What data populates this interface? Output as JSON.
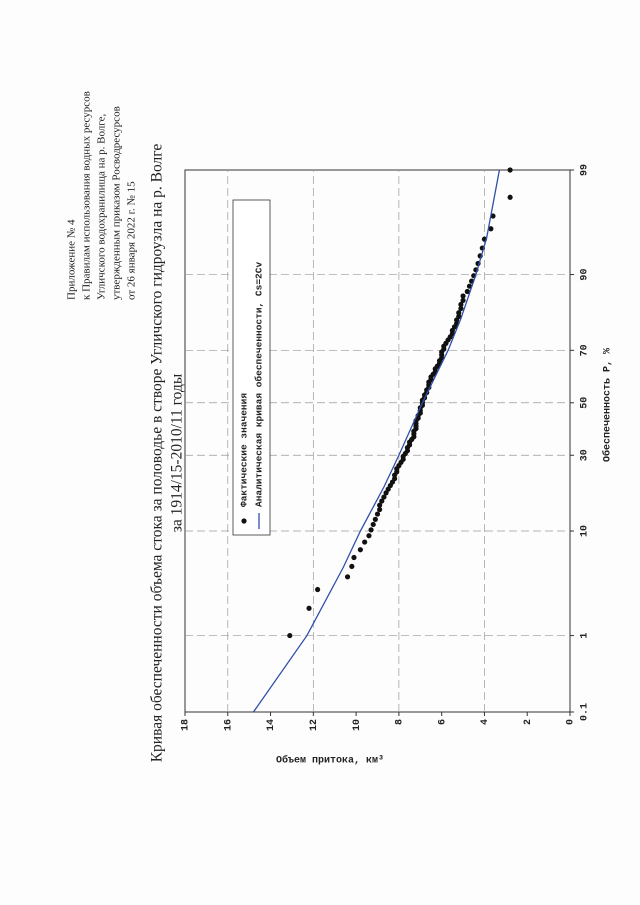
{
  "header": {
    "lines": [
      "Приложение № 4",
      "к Правилам использования водных ресурсов",
      "Угличского водохранилища на р. Волге,",
      "утвержденным приказом Росводресурсов",
      "от 26 января 2022 г. № 15"
    ]
  },
  "chart_data": {
    "type": "scatter",
    "title": [
      "Кривая обеспеченности объема стока за половодье в створе Угличского гидроузла на р. Волге",
      "за 1914/15-2010/11 годы"
    ],
    "x_label": "Обеспеченность P, %",
    "y_label": "Объем притока, км³",
    "x_scale": "normal-probability",
    "xlim": [
      0.1,
      99
    ],
    "xticks": [
      0.1,
      1,
      10,
      30,
      50,
      70,
      90,
      99
    ],
    "ylim": [
      0,
      18
    ],
    "yticks": [
      0,
      2,
      4,
      6,
      8,
      10,
      12,
      14,
      16,
      18
    ],
    "ygridlines": [
      4,
      8,
      12,
      16
    ],
    "series": [
      {
        "name": "Фактические значения",
        "kind": "points",
        "color": "#111111",
        "x": [
          1.0,
          2.0,
          3.1,
          4.1,
          5.1,
          6.1,
          7.1,
          8.2,
          9.2,
          10.2,
          11.2,
          12.2,
          13.3,
          14.3,
          15.3,
          16.3,
          17.3,
          18.4,
          19.4,
          20.4,
          21.4,
          22.4,
          23.5,
          24.5,
          25.5,
          26.5,
          27.6,
          28.6,
          29.6,
          30.6,
          31.6,
          32.7,
          33.7,
          34.7,
          35.7,
          36.7,
          37.8,
          38.8,
          39.8,
          40.8,
          41.8,
          42.9,
          43.9,
          44.9,
          45.9,
          46.9,
          48.0,
          49.0,
          50.0,
          51.0,
          52.0,
          53.1,
          54.1,
          55.1,
          56.1,
          57.1,
          58.2,
          59.2,
          60.2,
          61.2,
          62.2,
          63.3,
          64.3,
          65.3,
          66.3,
          67.3,
          68.4,
          69.4,
          70.4,
          71.4,
          72.4,
          73.5,
          74.5,
          75.5,
          76.5,
          77.6,
          78.6,
          79.6,
          80.6,
          81.6,
          82.7,
          83.7,
          84.7,
          85.7,
          86.7,
          87.8,
          88.8,
          89.8,
          90.8,
          91.8,
          92.9,
          93.9,
          94.9,
          95.9,
          96.9,
          98.0,
          99.0
        ],
        "values": [
          13.1,
          12.2,
          11.8,
          10.4,
          10.2,
          10.1,
          9.8,
          9.6,
          9.4,
          9.3,
          9.2,
          9.1,
          9.0,
          8.9,
          8.9,
          8.8,
          8.7,
          8.6,
          8.5,
          8.4,
          8.3,
          8.2,
          8.2,
          8.1,
          8.1,
          8.0,
          7.9,
          7.8,
          7.8,
          7.7,
          7.6,
          7.6,
          7.5,
          7.5,
          7.4,
          7.3,
          7.3,
          7.3,
          7.2,
          7.2,
          7.2,
          7.2,
          7.1,
          7.1,
          7.0,
          7.0,
          7.0,
          6.9,
          6.9,
          6.9,
          6.8,
          6.8,
          6.7,
          6.7,
          6.6,
          6.6,
          6.6,
          6.5,
          6.5,
          6.4,
          6.3,
          6.3,
          6.2,
          6.1,
          6.1,
          6.0,
          6.0,
          6.0,
          5.9,
          5.9,
          5.8,
          5.7,
          5.6,
          5.5,
          5.5,
          5.4,
          5.3,
          5.3,
          5.2,
          5.2,
          5.1,
          5.1,
          5.0,
          5.0,
          4.8,
          4.7,
          4.6,
          4.5,
          4.4,
          4.3,
          4.2,
          4.1,
          4.0,
          3.7,
          3.6,
          2.8,
          2.8
        ]
      },
      {
        "name": "Аналитическая кривая обеспеченности, Cs=2Cv",
        "kind": "line",
        "color": "#2f4fa8",
        "x": [
          0.1,
          1,
          5,
          10,
          20,
          30,
          50,
          70,
          80,
          90,
          95,
          99
        ],
        "values": [
          14.8,
          12.3,
          10.6,
          9.8,
          8.7,
          8.0,
          6.9,
          5.7,
          5.1,
          4.4,
          3.9,
          3.3
        ]
      }
    ]
  }
}
